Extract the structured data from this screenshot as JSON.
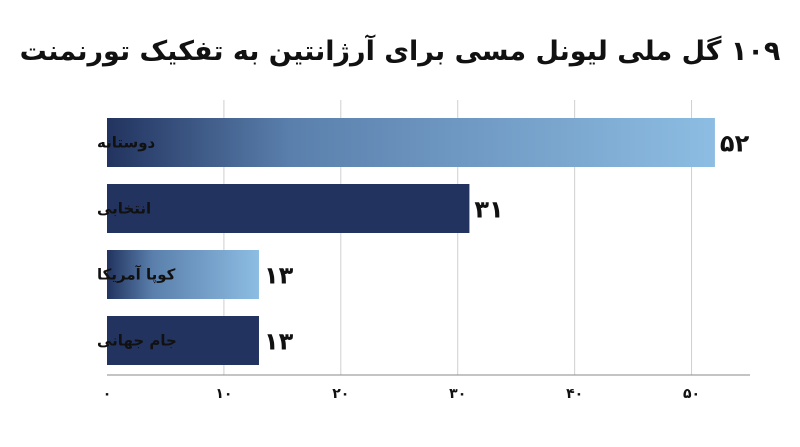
{
  "chart_data": {
    "type": "bar",
    "orientation": "horizontal",
    "title": "۱۰۹ گل ملی لیونل مسی برای آرژانتین به تفکیک تورنمنت",
    "xlabel": "",
    "ylabel": "",
    "categories": [
      "دوستانه",
      "انتخابی",
      "کوپا آمریکا",
      "جام جهانی"
    ],
    "values": [
      52,
      31,
      13,
      13
    ],
    "value_labels": [
      "۵۲",
      "۳۱",
      "۱۳",
      "۱۳"
    ],
    "bar_styles": [
      "gradient",
      "solid",
      "gradient",
      "solid"
    ],
    "xlim": [
      0,
      55
    ],
    "xticks": [
      0,
      10,
      20,
      30,
      40,
      50
    ],
    "xtick_labels": [
      "۰",
      "۱۰",
      "۲۰",
      "۳۰",
      "۴۰",
      "۵۰"
    ],
    "grid": true,
    "colors": {
      "dark": "#22335f",
      "light": "#8dbde2"
    }
  }
}
